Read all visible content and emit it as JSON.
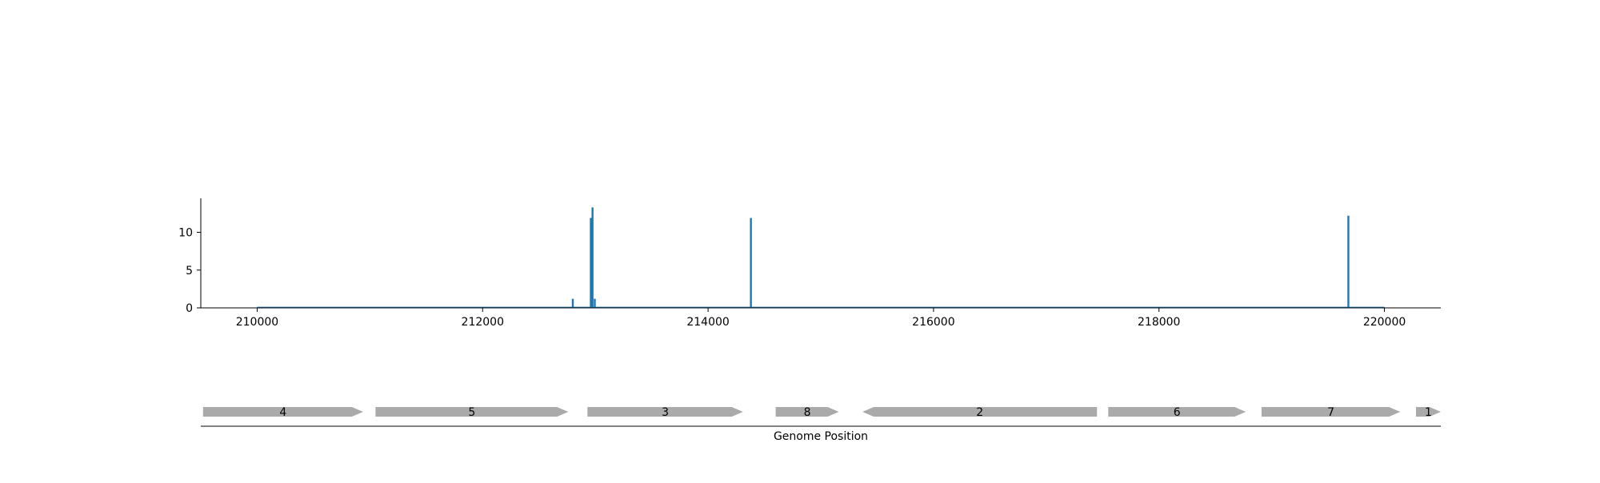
{
  "chart_data": [
    {
      "type": "bar",
      "title": "",
      "xlabel": "",
      "ylabel": "",
      "xlim": [
        209500,
        220500
      ],
      "ylim": [
        0,
        14.5
      ],
      "x_ticks": [
        210000,
        212000,
        214000,
        216000,
        218000,
        220000
      ],
      "x_tick_labels": [
        "210000",
        "212000",
        "214000",
        "216000",
        "218000",
        "220000"
      ],
      "y_ticks": [
        0,
        5,
        10
      ],
      "y_tick_labels": [
        "0",
        "5",
        "10"
      ],
      "grid": false,
      "series_color": "#1f77b4",
      "baseline_range": [
        210000,
        220000
      ],
      "peaks": [
        {
          "x": 212800,
          "y": 1.2
        },
        {
          "x": 212960,
          "y": 11.9
        },
        {
          "x": 212975,
          "y": 13.3
        },
        {
          "x": 212995,
          "y": 1.2
        },
        {
          "x": 214380,
          "y": 11.9
        },
        {
          "x": 219680,
          "y": 12.2
        }
      ]
    },
    {
      "type": "gene_map",
      "xlabel": "Genome Position",
      "xlim": [
        209500,
        220500
      ],
      "feature_color": "#aaaaaa",
      "genes": [
        {
          "label": "4",
          "start": 209520,
          "end": 210940,
          "strand": "+"
        },
        {
          "label": "5",
          "start": 211050,
          "end": 212760,
          "strand": "+"
        },
        {
          "label": "3",
          "start": 212930,
          "end": 214310,
          "strand": "+"
        },
        {
          "label": "8",
          "start": 214600,
          "end": 215160,
          "strand": "+"
        },
        {
          "label": "2",
          "start": 215370,
          "end": 217450,
          "strand": "-"
        },
        {
          "label": "6",
          "start": 217550,
          "end": 218770,
          "strand": "+"
        },
        {
          "label": "7",
          "start": 218910,
          "end": 220140,
          "strand": "+"
        },
        {
          "label": "1",
          "start": 220280,
          "end": 220500,
          "strand": "+"
        }
      ]
    }
  ]
}
